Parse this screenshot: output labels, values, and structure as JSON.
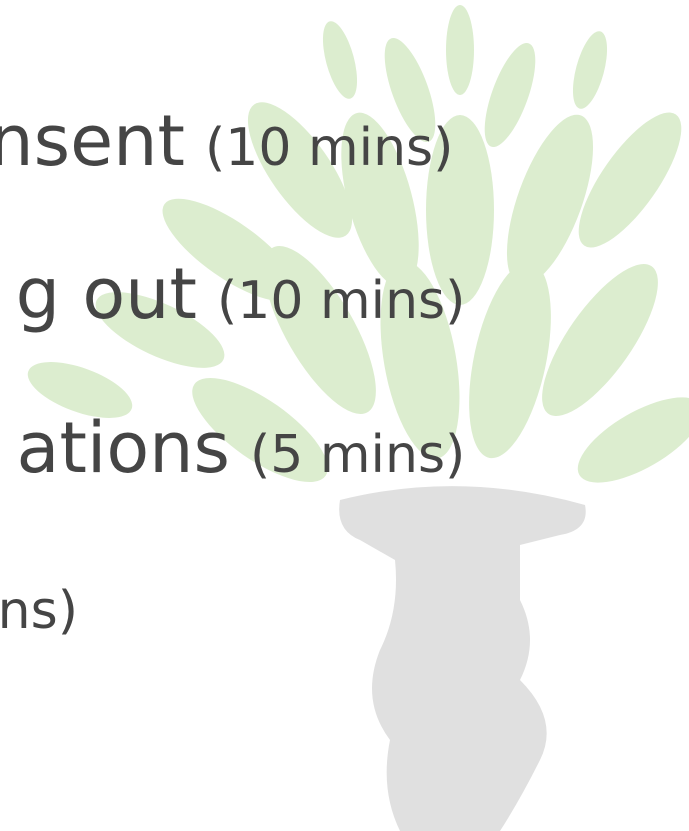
{
  "lines": [
    {
      "main": "nsent",
      "duration": "(10 mins)"
    },
    {
      "main": "g out",
      "duration": "(10 mins)"
    },
    {
      "main": "ations",
      "duration": "(5 mins)"
    },
    {
      "duration": "ns)"
    }
  ]
}
